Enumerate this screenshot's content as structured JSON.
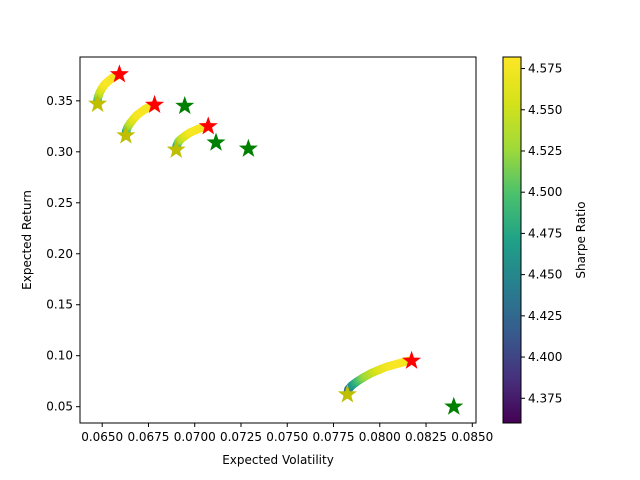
{
  "chart_data": {
    "type": "scatter",
    "xlabel": "Expected Volatility",
    "ylabel": "Expected Return",
    "xlim": [
      0.0638,
      0.0852
    ],
    "ylim": [
      0.034,
      0.393
    ],
    "x_ticks": [
      0.065,
      0.0675,
      0.07,
      0.0725,
      0.075,
      0.0775,
      0.08,
      0.0825,
      0.085
    ],
    "x_tick_labels": [
      "0.0650",
      "0.0675",
      "0.0700",
      "0.0725",
      "0.0750",
      "0.0775",
      "0.0800",
      "0.0825",
      "0.0850"
    ],
    "y_ticks": [
      0.05,
      0.1,
      0.15,
      0.2,
      0.25,
      0.3,
      0.35
    ],
    "y_tick_labels": [
      "0.05",
      "0.10",
      "0.15",
      "0.20",
      "0.25",
      "0.30",
      "0.35"
    ],
    "colorbar": {
      "label": "Sharpe Ratio",
      "colormap": "viridis",
      "range": [
        4.36,
        4.582
      ],
      "ticks": [
        4.375,
        4.4,
        4.425,
        4.45,
        4.475,
        4.5,
        4.525,
        4.55,
        4.575
      ],
      "tick_labels": [
        "4.375",
        "4.400",
        "4.425",
        "4.450",
        "4.475",
        "4.500",
        "4.525",
        "4.550",
        "4.575"
      ]
    },
    "frontiers": [
      {
        "x": [
          0.06475,
          0.06474,
          0.06478,
          0.06486,
          0.06498,
          0.06513,
          0.06531,
          0.06551,
          0.06572,
          0.06593
        ],
        "y": [
          0.347,
          0.35,
          0.354,
          0.358,
          0.362,
          0.366,
          0.369,
          0.372,
          0.374,
          0.376
        ],
        "sharpe": [
          4.43,
          4.47,
          4.51,
          4.54,
          4.56,
          4.575,
          4.58,
          4.578,
          4.575,
          4.57
        ]
      },
      {
        "x": [
          0.06628,
          0.06629,
          0.06637,
          0.06651,
          0.06668,
          0.06688,
          0.0671,
          0.06733,
          0.06757,
          0.06783
        ],
        "y": [
          0.316,
          0.32,
          0.324,
          0.328,
          0.332,
          0.336,
          0.339,
          0.342,
          0.344,
          0.346
        ],
        "sharpe": [
          4.43,
          4.47,
          4.51,
          4.54,
          4.56,
          4.575,
          4.58,
          4.578,
          4.575,
          4.57
        ]
      },
      {
        "x": [
          0.069,
          0.06902,
          0.06912,
          0.06929,
          0.06951,
          0.06976,
          0.07002,
          0.07028,
          0.07052,
          0.07073
        ],
        "y": [
          0.302,
          0.306,
          0.31,
          0.313,
          0.316,
          0.319,
          0.321,
          0.323,
          0.324,
          0.325
        ],
        "sharpe": [
          4.43,
          4.47,
          4.51,
          4.54,
          4.56,
          4.575,
          4.58,
          4.578,
          4.575,
          4.57
        ]
      },
      {
        "x": [
          0.07825,
          0.0783,
          0.0785,
          0.0788,
          0.07915,
          0.07955,
          0.07995,
          0.08035,
          0.08075,
          0.08115,
          0.08155
        ],
        "y": [
          0.062,
          0.067,
          0.071,
          0.075,
          0.079,
          0.083,
          0.086,
          0.089,
          0.091,
          0.093,
          0.095
        ],
        "sharpe": [
          4.4,
          4.43,
          4.46,
          4.49,
          4.52,
          4.54,
          4.56,
          4.572,
          4.578,
          4.58,
          4.575
        ]
      }
    ],
    "max_sharpe_points": [
      {
        "x": 0.06593,
        "y": 0.376
      },
      {
        "x": 0.06783,
        "y": 0.346
      },
      {
        "x": 0.07073,
        "y": 0.325
      },
      {
        "x": 0.08172,
        "y": 0.095
      }
    ],
    "min_volatility_points": [
      {
        "x": 0.06475,
        "y": 0.347
      },
      {
        "x": 0.06628,
        "y": 0.316
      },
      {
        "x": 0.069,
        "y": 0.302
      },
      {
        "x": 0.07825,
        "y": 0.062
      }
    ],
    "other_points": [
      {
        "x": 0.06946,
        "y": 0.345
      },
      {
        "x": 0.07115,
        "y": 0.309
      },
      {
        "x": 0.0729,
        "y": 0.303
      },
      {
        "x": 0.084,
        "y": 0.05
      }
    ],
    "colors": {
      "max_sharpe": "#ff0000",
      "min_volatility": "#bfbf00",
      "other": "#008000"
    }
  }
}
